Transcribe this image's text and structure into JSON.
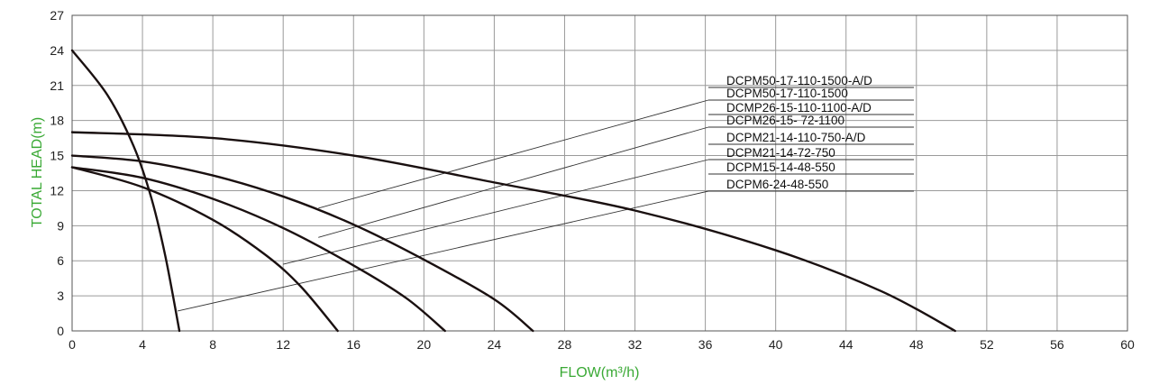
{
  "chart_data": {
    "type": "line",
    "xlabel": "FLOW(m³/h)",
    "ylabel": "TOTAL HEAD(m)",
    "xlim": [
      0,
      60
    ],
    "ylim": [
      0,
      27
    ],
    "xticks": [
      "0",
      "4",
      "8",
      "12",
      "16",
      "20",
      "24",
      "28",
      "32",
      "36",
      "40",
      "44",
      "48",
      "52",
      "56",
      "60"
    ],
    "yticks": [
      "0",
      "3",
      "6",
      "9",
      "12",
      "15",
      "18",
      "21",
      "24",
      "27"
    ],
    "grid": true,
    "colors": {
      "axis_title": "#3aa935",
      "curve": "#1a1010"
    },
    "legend_labels": [
      "DCPM50-17-110-1500-A/D",
      "DCPM50-17-110-1500",
      "DCMP26-15-110-1100-A/D",
      "DCPM26-15- 72-1100",
      "DCPM21-14-110-750-A/D",
      "DCPM21-14-72-750",
      "DCPM15-14-48-550",
      "DCPM6-24-48-550"
    ],
    "series": [
      {
        "label": "DCPM50-17-110-1500 (-A/D)",
        "x": [
          0,
          8,
          16,
          24,
          32,
          40,
          46,
          50.2
        ],
        "y": [
          17,
          16.5,
          15,
          12.7,
          10.3,
          6.9,
          3.4,
          0
        ]
      },
      {
        "label": "DCPM26-15- 72-1100 / DCMP26-15-110-1100-A/D",
        "x": [
          0,
          4,
          8,
          12,
          16,
          20,
          24,
          26.2
        ],
        "y": [
          15,
          14.5,
          13.3,
          11.5,
          9.1,
          6.1,
          2.7,
          0
        ]
      },
      {
        "label": "DCPM21-14-72-750 (-A/D)",
        "x": [
          0,
          4,
          8,
          12,
          16,
          19,
          21.2
        ],
        "y": [
          14,
          13.1,
          11.3,
          8.8,
          5.6,
          2.8,
          0
        ]
      },
      {
        "label": "DCPM15-14-48-550",
        "x": [
          0,
          4,
          8,
          11,
          13,
          15.1
        ],
        "y": [
          14,
          12.3,
          9.5,
          6.5,
          3.8,
          0
        ]
      },
      {
        "label": "DCPM6-24-48-550",
        "x": [
          0,
          2,
          3.5,
          4.5,
          5.3,
          6.1
        ],
        "y": [
          24,
          20.2,
          15.8,
          11.4,
          6.4,
          0
        ]
      }
    ]
  }
}
